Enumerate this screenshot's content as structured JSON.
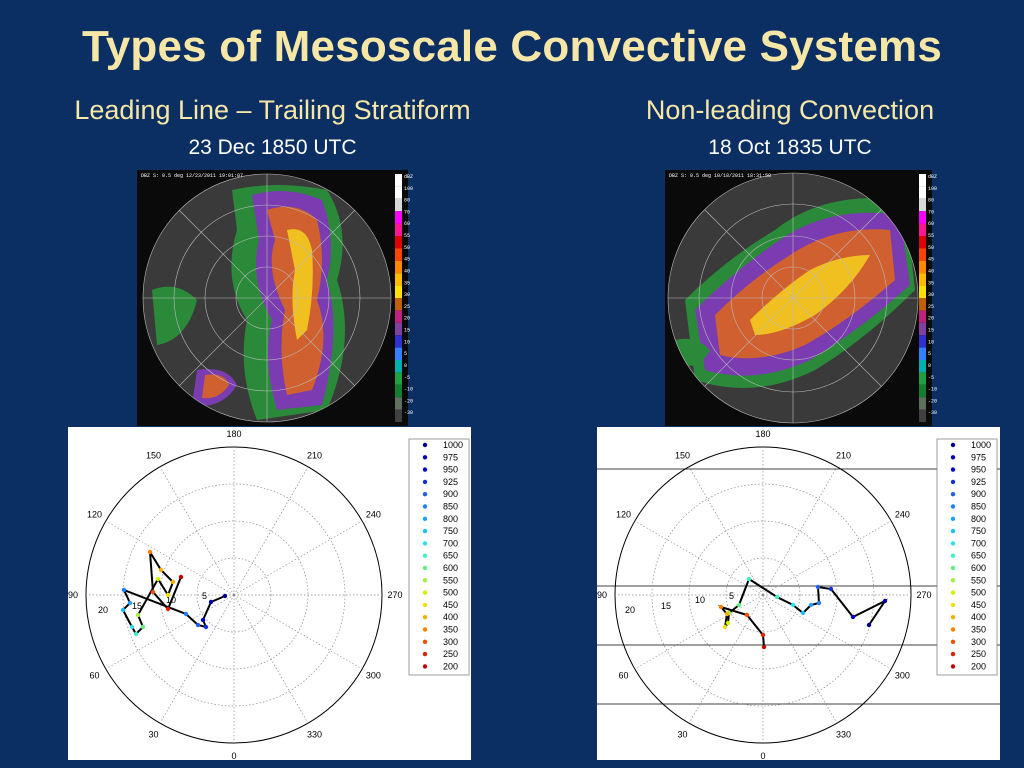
{
  "title": "Types of Mesoscale Convective Systems",
  "left": {
    "heading": "Leading Line – Trailing Stratiform",
    "date": "23 Dec 1850 UTC",
    "radar_header": "DBZ S: 0.5 deg 12/23/2011 19:01:07"
  },
  "right": {
    "heading": "Non-leading Convection",
    "date": "18 Oct 1835 UTC",
    "radar_header": "DBZ S: 0.5 deg 10/18/2011 18:31:58"
  },
  "colorbar_labels": [
    "dBZ",
    "100",
    "80",
    "70",
    "60",
    "55",
    "50",
    "45",
    "40",
    "35",
    "30",
    "25",
    "20",
    "15",
    "10",
    "5",
    "0",
    "-5",
    "-10",
    "-20",
    "-30"
  ],
  "colorbar_colors": [
    "#ffffff",
    "#ffffff",
    "#d8d8d8",
    "#ff00ff",
    "#ff1493",
    "#e00000",
    "#ff4400",
    "#ff8800",
    "#ffbb00",
    "#ffe000",
    "#c06000",
    "#c02080",
    "#8040a0",
    "#3030d0",
    "#3080ff",
    "#00b0b0",
    "#20a040",
    "#108030",
    "#607060",
    "#404040"
  ],
  "hodograph_azimuth_labels": [
    "180",
    "210",
    "240",
    "270",
    "300",
    "330",
    "0",
    "30",
    "60",
    "90",
    "120",
    "150"
  ],
  "legend_levels": [
    "1000",
    "975",
    "950",
    "925",
    "900",
    "850",
    "800",
    "750",
    "700",
    "650",
    "600",
    "550",
    "500",
    "450",
    "400",
    "350",
    "300",
    "250",
    "200"
  ],
  "legend_colors": [
    "#00008b",
    "#0000b0",
    "#0000d0",
    "#1030e0",
    "#2060f0",
    "#2080f8",
    "#20a0ff",
    "#20c0ff",
    "#30e0f0",
    "#40f0c0",
    "#60f080",
    "#a0f040",
    "#d0f000",
    "#f0e000",
    "#f8b000",
    "#f88000",
    "#f05000",
    "#e02000",
    "#c00000"
  ],
  "left_rings": [
    "20",
    "15",
    "10",
    "5"
  ],
  "right_rings": [
    "20",
    "15",
    "10",
    "5"
  ]
}
